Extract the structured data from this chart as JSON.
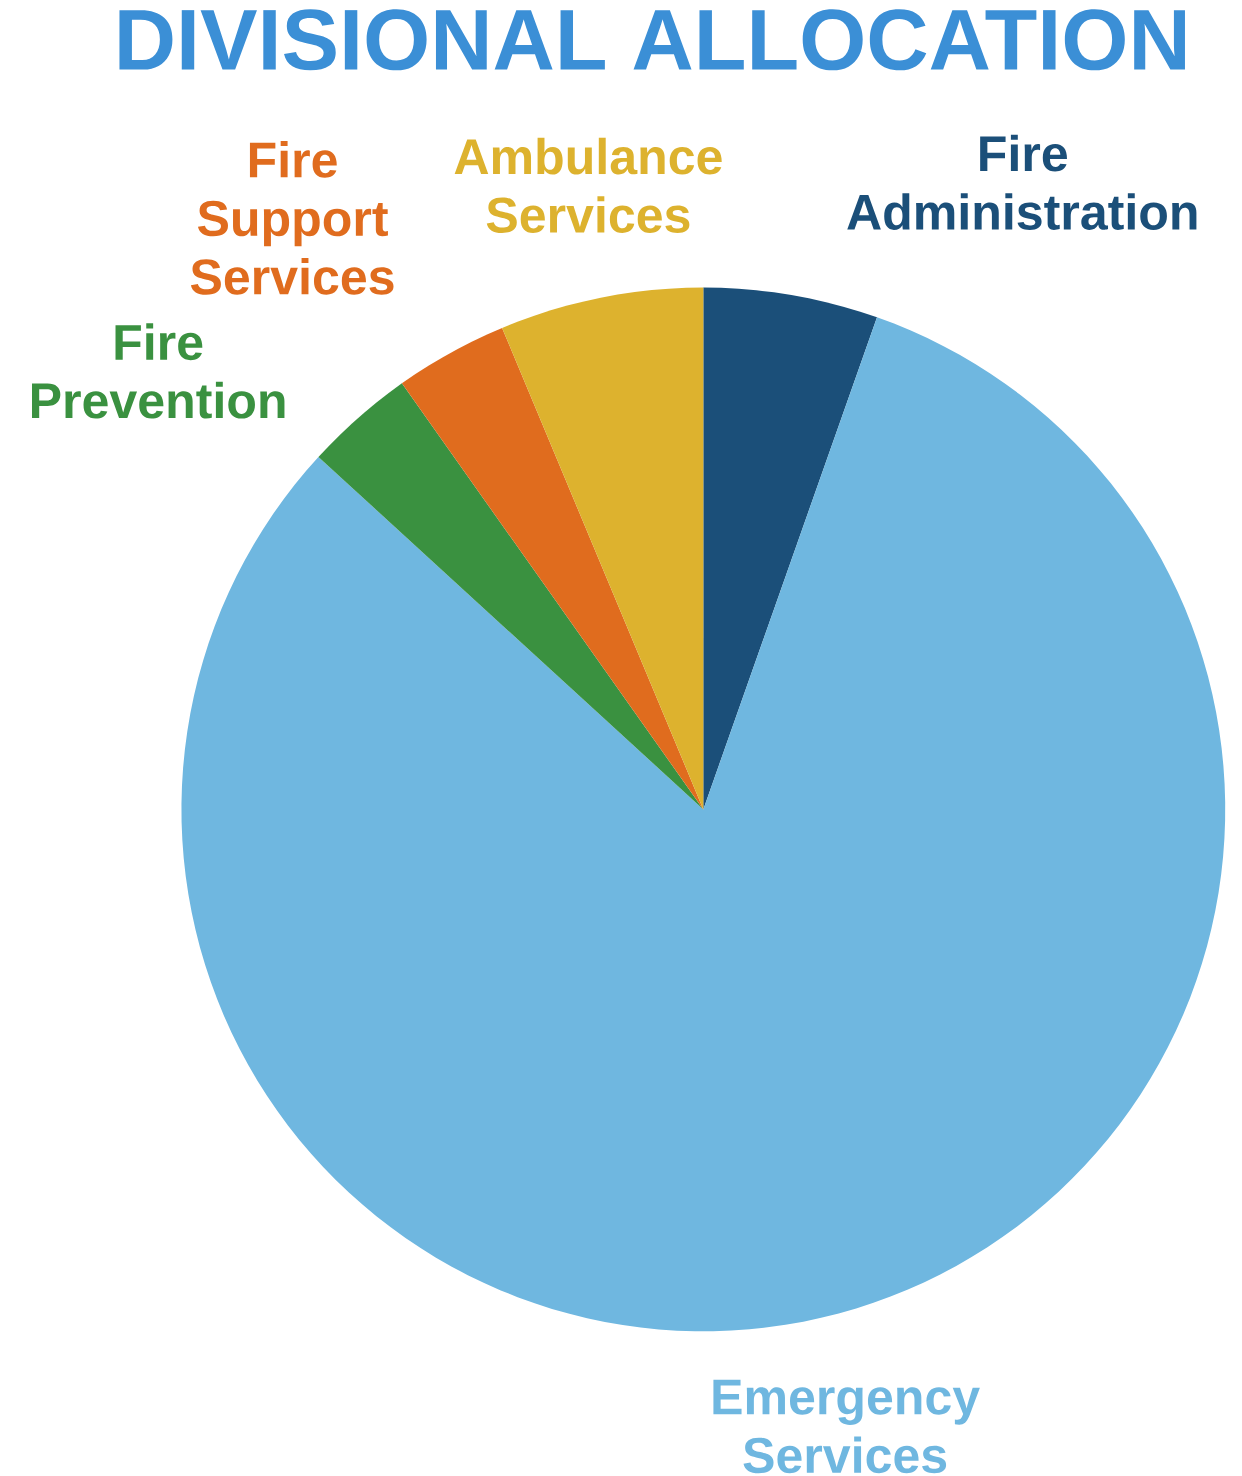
{
  "chart_data": {
    "type": "pie",
    "title": "DIVISIONAL ALLOCATION",
    "categories": [
      "Fire Administration",
      "Emergency Services",
      "Fire Prevention",
      "Fire Support Services",
      "Ambulance Services"
    ],
    "values": [
      5.4,
      81.4,
      3.4,
      3.5,
      6.3
    ],
    "colors": [
      "#1b4f79",
      "#6fb7e0",
      "#3a9140",
      "#e06c1e",
      "#ddb22e"
    ]
  }
}
